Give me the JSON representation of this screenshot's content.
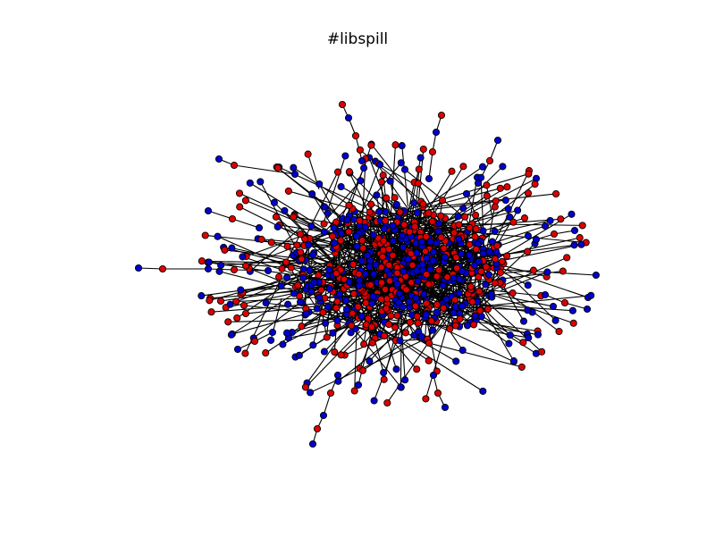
{
  "title": "#libspill",
  "graph": {
    "type": "network",
    "node_colors": [
      "#dd0000",
      "#0000cc"
    ],
    "node_outline": "#000000",
    "edge_color": "#000000",
    "background": "#ffffff"
  }
}
